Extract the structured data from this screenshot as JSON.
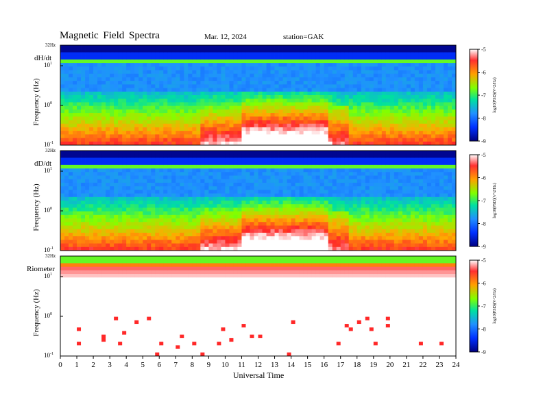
{
  "header": {
    "title": "Magnetic  Field  Spectra",
    "date": "Mar. 12, 2024",
    "station": "station=GAK"
  },
  "colors": {
    "scale_stops": [
      "#ffffff",
      "#ff2020",
      "#ffb000",
      "#80ff00",
      "#00d0a0",
      "#20a0ff",
      "#0040ff",
      "#000080"
    ]
  },
  "chart_data": [
    {
      "type": "heatmap",
      "panel_label": "dH/dt",
      "ylabel": "Frequency  (Hz)",
      "top_label": "32Hz",
      "y_ticks": [
        {
          "base": "10",
          "exp": "1"
        },
        {
          "base": "10",
          "exp": "0"
        },
        {
          "base": "10",
          "exp": "-1"
        }
      ],
      "x_range": [
        0,
        24
      ],
      "y_scale": "log",
      "colorbar": {
        "label": "log10(PSD)(V^2/Hz)",
        "ticks": [
          "-5",
          "-6",
          "-7",
          "-8",
          "-9"
        ]
      },
      "activity": {
        "quiet_before": 8,
        "active_start": 8.5,
        "active_peak": 11.5,
        "active_end": 16.5
      }
    },
    {
      "type": "heatmap",
      "panel_label": "dD/dt",
      "ylabel": "Frequency  (Hz)",
      "top_label": "32Hz",
      "y_ticks": [
        {
          "base": "10",
          "exp": "1"
        },
        {
          "base": "10",
          "exp": "0"
        },
        {
          "base": "10",
          "exp": "-1"
        }
      ],
      "x_range": [
        0,
        24
      ],
      "y_scale": "log",
      "colorbar": {
        "label": "log10(PSD)(V^2/Hz)",
        "ticks": [
          "-5",
          "-6",
          "-7",
          "-8",
          "-9"
        ]
      },
      "activity": {
        "quiet_before": 8,
        "active_start": 8.5,
        "active_peak": 11.5,
        "active_end": 16.5
      }
    },
    {
      "type": "heatmap",
      "panel_label": "Riometer",
      "ylabel": "Frequency  (Hz)",
      "top_label": "32Hz",
      "y_ticks": [
        {
          "base": "10",
          "exp": "1"
        },
        {
          "base": "10",
          "exp": "0"
        },
        {
          "base": "10",
          "exp": "-1"
        }
      ],
      "x_range": [
        0,
        24
      ],
      "y_scale": "log",
      "colorbar": {
        "label": "log10(PSD)(V^2/Hz)",
        "ticks": [
          "-5",
          "-6",
          "-7",
          "-8",
          "-9"
        ]
      }
    }
  ],
  "x_axis": {
    "label": "Universal Time",
    "ticks": [
      "0",
      "1",
      "2",
      "3",
      "4",
      "5",
      "6",
      "7",
      "8",
      "9",
      "10",
      "11",
      "12",
      "13",
      "14",
      "15",
      "16",
      "17",
      "18",
      "19",
      "20",
      "21",
      "22",
      "23",
      "24"
    ]
  }
}
